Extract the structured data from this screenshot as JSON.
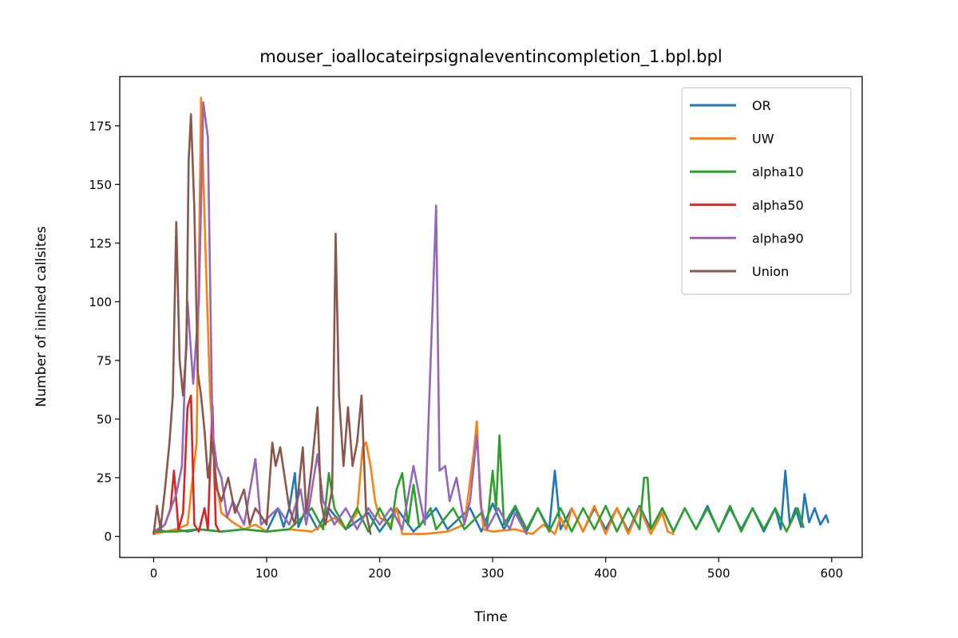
{
  "chart_data": {
    "type": "line",
    "title": "mouser_ioallocateirpsignaleventincompletion_1.bpl.bpl",
    "xlabel": "Time",
    "ylabel": "Number of inlined callsites",
    "xlim": [
      -30,
      627
    ],
    "ylim": [
      -9,
      196
    ],
    "xticks": [
      0,
      100,
      200,
      300,
      400,
      500,
      600
    ],
    "yticks": [
      0,
      25,
      50,
      75,
      100,
      125,
      150,
      175
    ],
    "grid": false,
    "legend_position": "top-right",
    "series": [
      {
        "name": "OR",
        "color": "#1f77b4",
        "points": [
          [
            0,
            2
          ],
          [
            5,
            3
          ],
          [
            10,
            2
          ],
          [
            20,
            3
          ],
          [
            30,
            2
          ],
          [
            40,
            3
          ],
          [
            60,
            2
          ],
          [
            80,
            3
          ],
          [
            100,
            2
          ],
          [
            110,
            12
          ],
          [
            115,
            4
          ],
          [
            120,
            12
          ],
          [
            125,
            27
          ],
          [
            128,
            4
          ],
          [
            135,
            12
          ],
          [
            145,
            3
          ],
          [
            155,
            12
          ],
          [
            170,
            3
          ],
          [
            190,
            10
          ],
          [
            200,
            2
          ],
          [
            215,
            12
          ],
          [
            230,
            2
          ],
          [
            250,
            12
          ],
          [
            260,
            3
          ],
          [
            280,
            12
          ],
          [
            290,
            2
          ],
          [
            300,
            14
          ],
          [
            310,
            3
          ],
          [
            320,
            12
          ],
          [
            330,
            2
          ],
          [
            340,
            12
          ],
          [
            350,
            3
          ],
          [
            355,
            28
          ],
          [
            360,
            3
          ],
          [
            370,
            12
          ],
          [
            380,
            2
          ],
          [
            390,
            12
          ],
          [
            400,
            3
          ],
          [
            410,
            12
          ],
          [
            420,
            2
          ],
          [
            430,
            13
          ],
          [
            440,
            3
          ],
          [
            450,
            12
          ],
          [
            460,
            2
          ],
          [
            470,
            12
          ],
          [
            480,
            3
          ],
          [
            490,
            13
          ],
          [
            500,
            2
          ],
          [
            510,
            12
          ],
          [
            520,
            3
          ],
          [
            530,
            12
          ],
          [
            540,
            2
          ],
          [
            550,
            12
          ],
          [
            555,
            3
          ],
          [
            559,
            28
          ],
          [
            563,
            5
          ],
          [
            568,
            12
          ],
          [
            573,
            4
          ],
          [
            576,
            18
          ],
          [
            580,
            6
          ],
          [
            585,
            12
          ],
          [
            590,
            5
          ],
          [
            595,
            9
          ],
          [
            597,
            6
          ]
        ]
      },
      {
        "name": "UW",
        "color": "#ff7f0e",
        "points": [
          [
            0,
            1
          ],
          [
            10,
            2
          ],
          [
            20,
            3
          ],
          [
            30,
            5
          ],
          [
            38,
            40
          ],
          [
            42,
            187
          ],
          [
            46,
            120
          ],
          [
            50,
            60
          ],
          [
            55,
            25
          ],
          [
            60,
            10
          ],
          [
            70,
            6
          ],
          [
            80,
            3
          ],
          [
            90,
            5
          ],
          [
            100,
            2
          ],
          [
            120,
            3
          ],
          [
            140,
            2
          ],
          [
            160,
            8
          ],
          [
            170,
            3
          ],
          [
            180,
            10
          ],
          [
            185,
            38
          ],
          [
            188,
            40
          ],
          [
            192,
            30
          ],
          [
            196,
            15
          ],
          [
            200,
            8
          ],
          [
            210,
            5
          ],
          [
            215,
            12
          ],
          [
            220,
            1
          ],
          [
            240,
            1
          ],
          [
            260,
            2
          ],
          [
            275,
            5
          ],
          [
            283,
            35
          ],
          [
            286,
            49
          ],
          [
            289,
            15
          ],
          [
            292,
            3
          ],
          [
            300,
            2
          ],
          [
            320,
            3
          ],
          [
            335,
            1
          ],
          [
            345,
            5
          ],
          [
            355,
            1
          ],
          [
            360,
            8
          ],
          [
            365,
            3
          ],
          [
            370,
            12
          ],
          [
            380,
            2
          ],
          [
            390,
            13
          ],
          [
            400,
            1
          ],
          [
            410,
            12
          ],
          [
            420,
            1
          ],
          [
            430,
            12
          ],
          [
            440,
            1
          ],
          [
            450,
            10
          ],
          [
            455,
            2
          ],
          [
            460,
            1
          ]
        ]
      },
      {
        "name": "alpha10",
        "color": "#2ca02c",
        "points": [
          [
            0,
            2
          ],
          [
            20,
            2
          ],
          [
            40,
            3
          ],
          [
            60,
            2
          ],
          [
            80,
            3
          ],
          [
            100,
            2
          ],
          [
            120,
            3
          ],
          [
            140,
            12
          ],
          [
            150,
            3
          ],
          [
            155,
            27
          ],
          [
            160,
            12
          ],
          [
            170,
            3
          ],
          [
            180,
            12
          ],
          [
            190,
            2
          ],
          [
            200,
            12
          ],
          [
            210,
            3
          ],
          [
            215,
            20
          ],
          [
            220,
            27
          ],
          [
            225,
            5
          ],
          [
            230,
            22
          ],
          [
            235,
            4
          ],
          [
            245,
            12
          ],
          [
            250,
            3
          ],
          [
            265,
            12
          ],
          [
            275,
            3
          ],
          [
            290,
            10
          ],
          [
            295,
            4
          ],
          [
            300,
            28
          ],
          [
            303,
            12
          ],
          [
            306,
            43
          ],
          [
            310,
            5
          ],
          [
            320,
            13
          ],
          [
            330,
            3
          ],
          [
            340,
            12
          ],
          [
            350,
            2
          ],
          [
            360,
            12
          ],
          [
            370,
            2
          ],
          [
            380,
            12
          ],
          [
            390,
            3
          ],
          [
            400,
            13
          ],
          [
            410,
            2
          ],
          [
            420,
            12
          ],
          [
            430,
            3
          ],
          [
            434,
            25
          ],
          [
            437,
            25
          ],
          [
            440,
            3
          ],
          [
            450,
            12
          ],
          [
            460,
            2
          ],
          [
            470,
            12
          ],
          [
            480,
            3
          ],
          [
            490,
            12
          ],
          [
            500,
            2
          ],
          [
            510,
            13
          ],
          [
            520,
            2
          ],
          [
            530,
            12
          ],
          [
            540,
            3
          ],
          [
            550,
            12
          ],
          [
            560,
            2
          ],
          [
            570,
            12
          ],
          [
            575,
            4
          ]
        ]
      },
      {
        "name": "alpha50",
        "color": "#d62728",
        "points": [
          [
            0,
            2
          ],
          [
            5,
            3
          ],
          [
            10,
            5
          ],
          [
            15,
            12
          ],
          [
            18,
            28
          ],
          [
            22,
            3
          ],
          [
            26,
            10
          ],
          [
            30,
            55
          ],
          [
            33,
            60
          ],
          [
            36,
            5
          ],
          [
            40,
            2
          ],
          [
            45,
            12
          ],
          [
            48,
            3
          ],
          [
            52,
            56
          ],
          [
            55,
            5
          ],
          [
            58,
            2
          ]
        ]
      },
      {
        "name": "alpha90",
        "color": "#9467bd",
        "points": [
          [
            0,
            2
          ],
          [
            10,
            5
          ],
          [
            20,
            18
          ],
          [
            25,
            30
          ],
          [
            30,
            100
          ],
          [
            35,
            65
          ],
          [
            40,
            100
          ],
          [
            44,
            185
          ],
          [
            48,
            170
          ],
          [
            52,
            45
          ],
          [
            56,
            30
          ],
          [
            60,
            25
          ],
          [
            65,
            8
          ],
          [
            70,
            15
          ],
          [
            80,
            5
          ],
          [
            90,
            33
          ],
          [
            95,
            5
          ],
          [
            110,
            12
          ],
          [
            120,
            5
          ],
          [
            130,
            20
          ],
          [
            135,
            5
          ],
          [
            145,
            35
          ],
          [
            150,
            15
          ],
          [
            160,
            5
          ],
          [
            170,
            12
          ],
          [
            180,
            3
          ],
          [
            190,
            12
          ],
          [
            200,
            5
          ],
          [
            210,
            12
          ],
          [
            220,
            3
          ],
          [
            230,
            30
          ],
          [
            240,
            5
          ],
          [
            250,
            141
          ],
          [
            253,
            28
          ],
          [
            258,
            30
          ],
          [
            262,
            15
          ],
          [
            268,
            25
          ],
          [
            275,
            5
          ],
          [
            280,
            15
          ],
          [
            286,
            43
          ],
          [
            290,
            12
          ],
          [
            295,
            3
          ],
          [
            305,
            12
          ],
          [
            315,
            3
          ],
          [
            320,
            10
          ],
          [
            330,
            1
          ]
        ]
      },
      {
        "name": "Union",
        "color": "#8c564b",
        "points": [
          [
            0,
            1
          ],
          [
            3,
            13
          ],
          [
            6,
            3
          ],
          [
            10,
            20
          ],
          [
            14,
            40
          ],
          [
            17,
            60
          ],
          [
            20,
            134
          ],
          [
            23,
            75
          ],
          [
            26,
            60
          ],
          [
            29,
            80
          ],
          [
            31,
            160
          ],
          [
            33,
            180
          ],
          [
            36,
            140
          ],
          [
            39,
            70
          ],
          [
            42,
            60
          ],
          [
            45,
            45
          ],
          [
            48,
            25
          ],
          [
            52,
            40
          ],
          [
            56,
            20
          ],
          [
            60,
            15
          ],
          [
            66,
            25
          ],
          [
            72,
            10
          ],
          [
            80,
            20
          ],
          [
            85,
            5
          ],
          [
            90,
            12
          ],
          [
            96,
            8
          ],
          [
            100,
            5
          ],
          [
            105,
            40
          ],
          [
            108,
            30
          ],
          [
            112,
            38
          ],
          [
            116,
            25
          ],
          [
            120,
            12
          ],
          [
            125,
            5
          ],
          [
            132,
            38
          ],
          [
            135,
            10
          ],
          [
            140,
            30
          ],
          [
            145,
            55
          ],
          [
            148,
            15
          ],
          [
            152,
            5
          ],
          [
            158,
            20
          ],
          [
            161,
            129
          ],
          [
            164,
            60
          ],
          [
            168,
            30
          ],
          [
            172,
            55
          ],
          [
            176,
            30
          ],
          [
            180,
            40
          ],
          [
            184,
            60
          ],
          [
            188,
            10
          ],
          [
            192,
            1
          ]
        ]
      }
    ],
    "legend": [
      {
        "name": "OR",
        "color": "#1f77b4"
      },
      {
        "name": "UW",
        "color": "#ff7f0e"
      },
      {
        "name": "alpha10",
        "color": "#2ca02c"
      },
      {
        "name": "alpha50",
        "color": "#d62728"
      },
      {
        "name": "alpha90",
        "color": "#9467bd"
      },
      {
        "name": "Union",
        "color": "#8c564b"
      }
    ]
  }
}
